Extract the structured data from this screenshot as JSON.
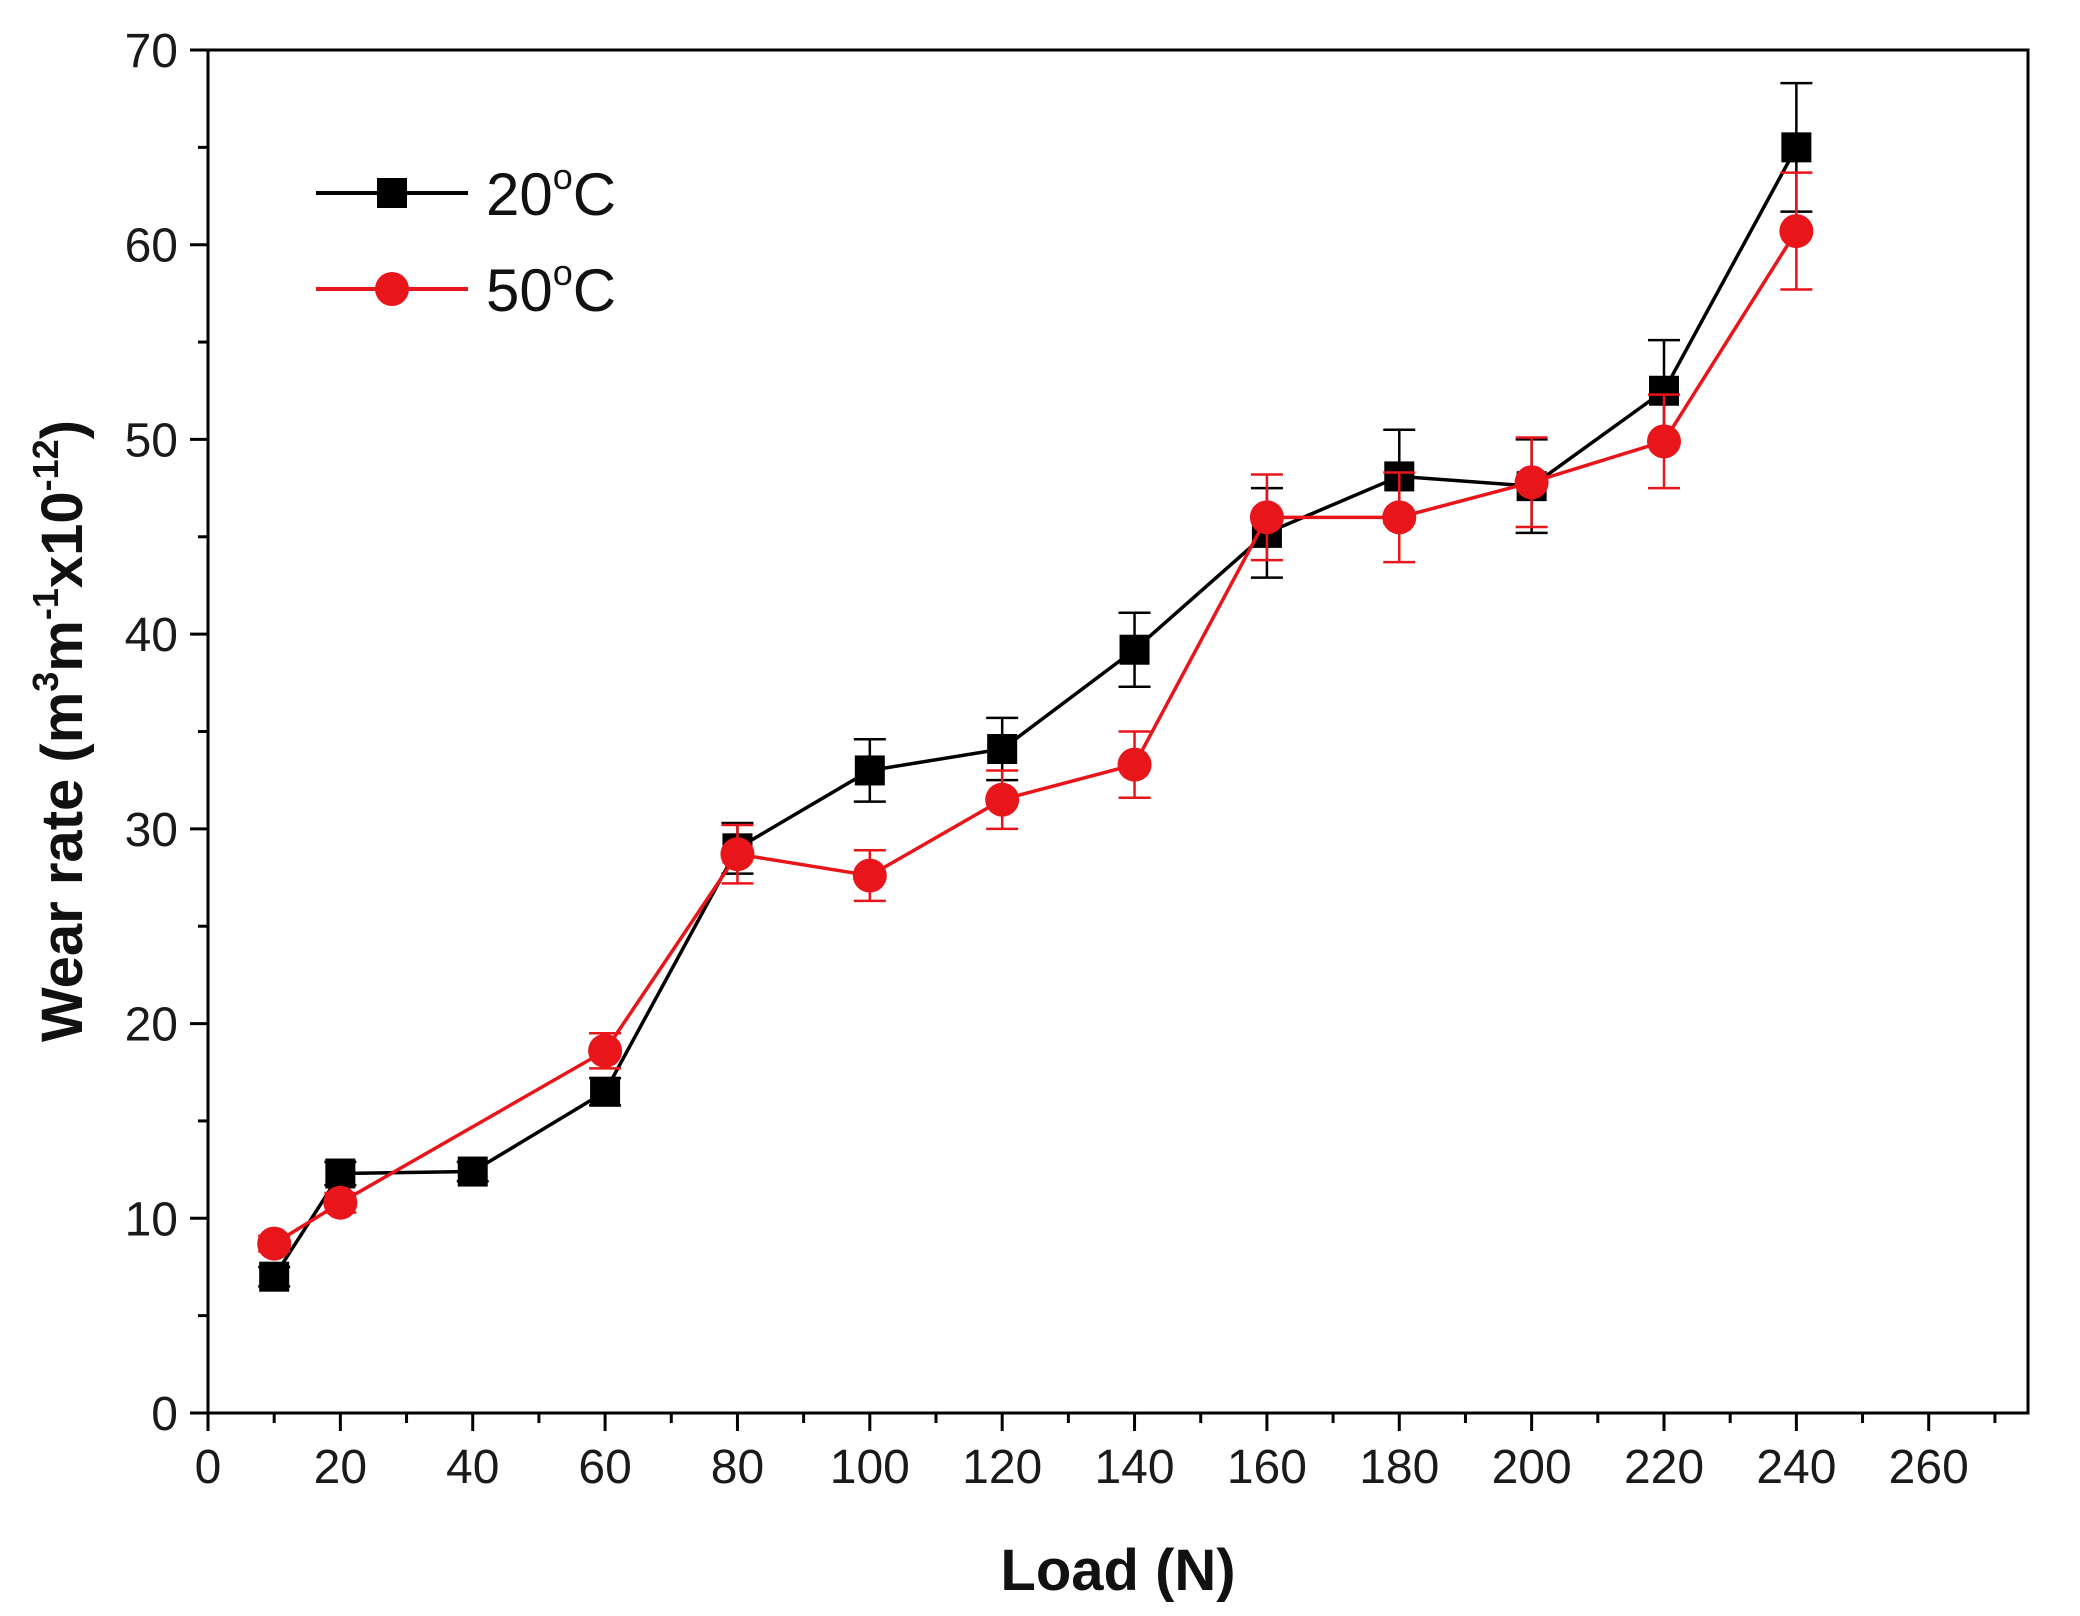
{
  "chart_data": {
    "type": "line",
    "xlabel": "Load (N)",
    "ylabel": {
      "prefix": "Wear rate (m",
      "sup1": "3",
      "mid": "m",
      "sup2": "-1",
      "mid2": "x10",
      "sup3": "-12",
      "suffix": ")"
    },
    "xlim": [
      0,
      275
    ],
    "ylim": [
      0,
      70
    ],
    "x_ticks": [
      0,
      20,
      40,
      60,
      80,
      100,
      120,
      140,
      160,
      180,
      200,
      220,
      240,
      260
    ],
    "y_ticks": [
      0,
      10,
      20,
      30,
      40,
      50,
      60,
      70
    ],
    "grid": false,
    "legend_position": "top-left",
    "series": [
      {
        "name": "20",
        "name_sup": "o",
        "name_suffix": "C",
        "color": "#000000",
        "marker": "square",
        "x": [
          10,
          20,
          40,
          60,
          80,
          100,
          120,
          140,
          160,
          180,
          200,
          220,
          240
        ],
        "y": [
          7.0,
          12.3,
          12.4,
          16.5,
          29.0,
          33.0,
          34.1,
          39.2,
          45.2,
          48.1,
          47.6,
          52.5,
          65.0
        ],
        "err": [
          0.5,
          0.6,
          0.5,
          0.7,
          1.3,
          1.6,
          1.6,
          1.9,
          2.3,
          2.4,
          2.4,
          2.6,
          3.3
        ]
      },
      {
        "name": "50",
        "name_sup": "o",
        "name_suffix": "C",
        "color": "#e8151b",
        "marker": "circle",
        "x": [
          10,
          20,
          60,
          80,
          100,
          120,
          140,
          160,
          180,
          200,
          220,
          240
        ],
        "y": [
          8.7,
          10.8,
          18.6,
          28.7,
          27.6,
          31.5,
          33.3,
          46.0,
          46.0,
          47.8,
          49.9,
          60.7
        ],
        "err": [
          0.4,
          0.5,
          0.9,
          1.5,
          1.3,
          1.5,
          1.7,
          2.2,
          2.3,
          2.3,
          2.4,
          3.0
        ]
      }
    ]
  }
}
